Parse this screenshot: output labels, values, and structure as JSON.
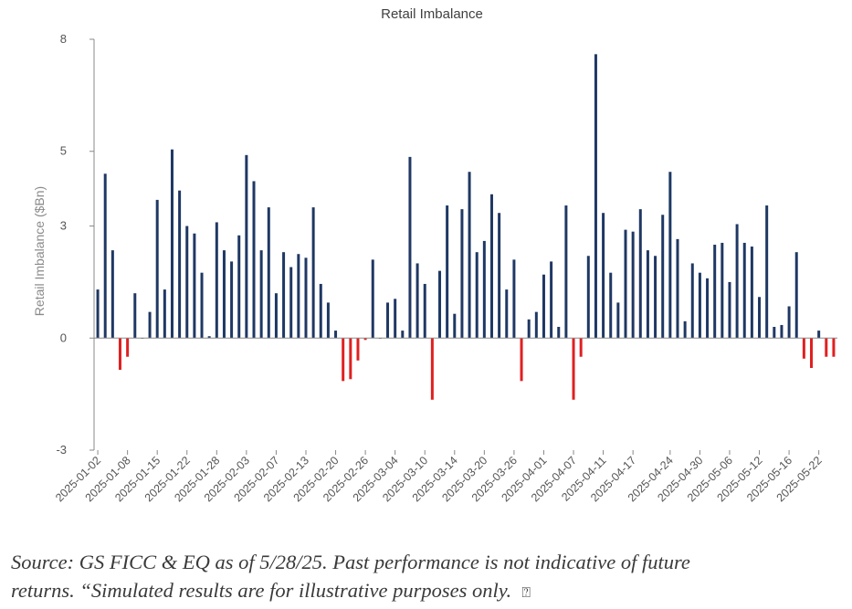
{
  "chart_data": {
    "type": "bar",
    "title": "Retail Imbalance",
    "xlabel": "",
    "ylabel": "Retail Imbalance ($Bn)",
    "ylim": [
      -3,
      8
    ],
    "yticks": [
      -3,
      0,
      3,
      5,
      8
    ],
    "grid": false,
    "legend": "none",
    "colors": {
      "positive": "#1f3864",
      "negative": "#e02020"
    },
    "categories": [
      "2025-01-02",
      "2025-01-03",
      "2025-01-06",
      "2025-01-07",
      "2025-01-08",
      "2025-01-10",
      "2025-01-13",
      "2025-01-14",
      "2025-01-15",
      "2025-01-16",
      "2025-01-17",
      "2025-01-21",
      "2025-01-22",
      "2025-01-23",
      "2025-01-24",
      "2025-01-27",
      "2025-01-28",
      "2025-01-29",
      "2025-01-30",
      "2025-01-31",
      "2025-02-03",
      "2025-02-04",
      "2025-02-05",
      "2025-02-06",
      "2025-02-07",
      "2025-02-10",
      "2025-02-11",
      "2025-02-12",
      "2025-02-13",
      "2025-02-14",
      "2025-02-18",
      "2025-02-19",
      "2025-02-20",
      "2025-02-21",
      "2025-02-24",
      "2025-02-25",
      "2025-02-26",
      "2025-02-27",
      "2025-02-28",
      "2025-03-03",
      "2025-03-04",
      "2025-03-05",
      "2025-03-06",
      "2025-03-07",
      "2025-03-10",
      "2025-03-11",
      "2025-03-12",
      "2025-03-13",
      "2025-03-14",
      "2025-03-17",
      "2025-03-18",
      "2025-03-19",
      "2025-03-20",
      "2025-03-21",
      "2025-03-24",
      "2025-03-25",
      "2025-03-26",
      "2025-03-27",
      "2025-03-28",
      "2025-03-31",
      "2025-04-01",
      "2025-04-02",
      "2025-04-03",
      "2025-04-04",
      "2025-04-07",
      "2025-04-08",
      "2025-04-09",
      "2025-04-10",
      "2025-04-11",
      "2025-04-14",
      "2025-04-15",
      "2025-04-16",
      "2025-04-17",
      "2025-04-18",
      "2025-04-21",
      "2025-04-22",
      "2025-04-23",
      "2025-04-24",
      "2025-04-25",
      "2025-04-28",
      "2025-04-29",
      "2025-04-30",
      "2025-05-01",
      "2025-05-02",
      "2025-05-05",
      "2025-05-06",
      "2025-05-07",
      "2025-05-08",
      "2025-05-09",
      "2025-05-12",
      "2025-05-13",
      "2025-05-14",
      "2025-05-15",
      "2025-05-16",
      "2025-05-19",
      "2025-05-20",
      "2025-05-21",
      "2025-05-22",
      "2025-05-23",
      "2025-05-27"
    ],
    "x_tick_labels": [
      "2025-01-02",
      "2025-01-08",
      "2025-01-15",
      "2025-01-22",
      "2025-01-28",
      "2025-02-03",
      "2025-02-07",
      "2025-02-13",
      "2025-02-20",
      "2025-02-26",
      "2025-03-04",
      "2025-03-10",
      "2025-03-14",
      "2025-03-20",
      "2025-03-26",
      "2025-04-01",
      "2025-04-07",
      "2025-04-11",
      "2025-04-17",
      "2025-04-24",
      "2025-04-30",
      "2025-05-06",
      "2025-05-12",
      "2025-05-16",
      "2025-05-22"
    ],
    "values": [
      1.3,
      4.4,
      2.35,
      -0.85,
      -0.5,
      1.2,
      0,
      0.7,
      3.7,
      1.3,
      5.05,
      3.95,
      3.0,
      2.8,
      1.75,
      0.05,
      3.1,
      2.35,
      2.05,
      2.75,
      4.9,
      4.2,
      2.35,
      3.5,
      1.2,
      2.3,
      1.9,
      2.25,
      2.15,
      3.5,
      1.45,
      0.95,
      0.2,
      -1.15,
      -1.1,
      -0.6,
      -0.05,
      2.1,
      0,
      0.95,
      1.05,
      0.2,
      4.85,
      2.0,
      1.45,
      -1.65,
      1.8,
      3.55,
      0.65,
      3.45,
      4.45,
      2.3,
      2.6,
      3.85,
      3.35,
      1.3,
      2.1,
      -1.15,
      0.5,
      0.7,
      1.7,
      2.05,
      0.3,
      3.55,
      -1.65,
      -0.5,
      2.2,
      7.6,
      3.35,
      1.75,
      0.95,
      2.9,
      2.85,
      3.45,
      2.35,
      2.2,
      3.3,
      4.45,
      2.65,
      0.45,
      2.0,
      1.75,
      1.6,
      2.5,
      2.55,
      1.5,
      3.05,
      2.55,
      2.45,
      1.1,
      3.55,
      0.3,
      0.35,
      0.85,
      2.3,
      -0.55,
      -0.8,
      0.2,
      -0.5,
      -0.5
    ]
  },
  "caption": {
    "line1": "Source: GS FICC & EQ as of 5/28/25. Past performance is not indicative of future",
    "line2": "returns. “Simulated results are for illustrative purposes only.",
    "trailing_glyph": "⍰"
  }
}
